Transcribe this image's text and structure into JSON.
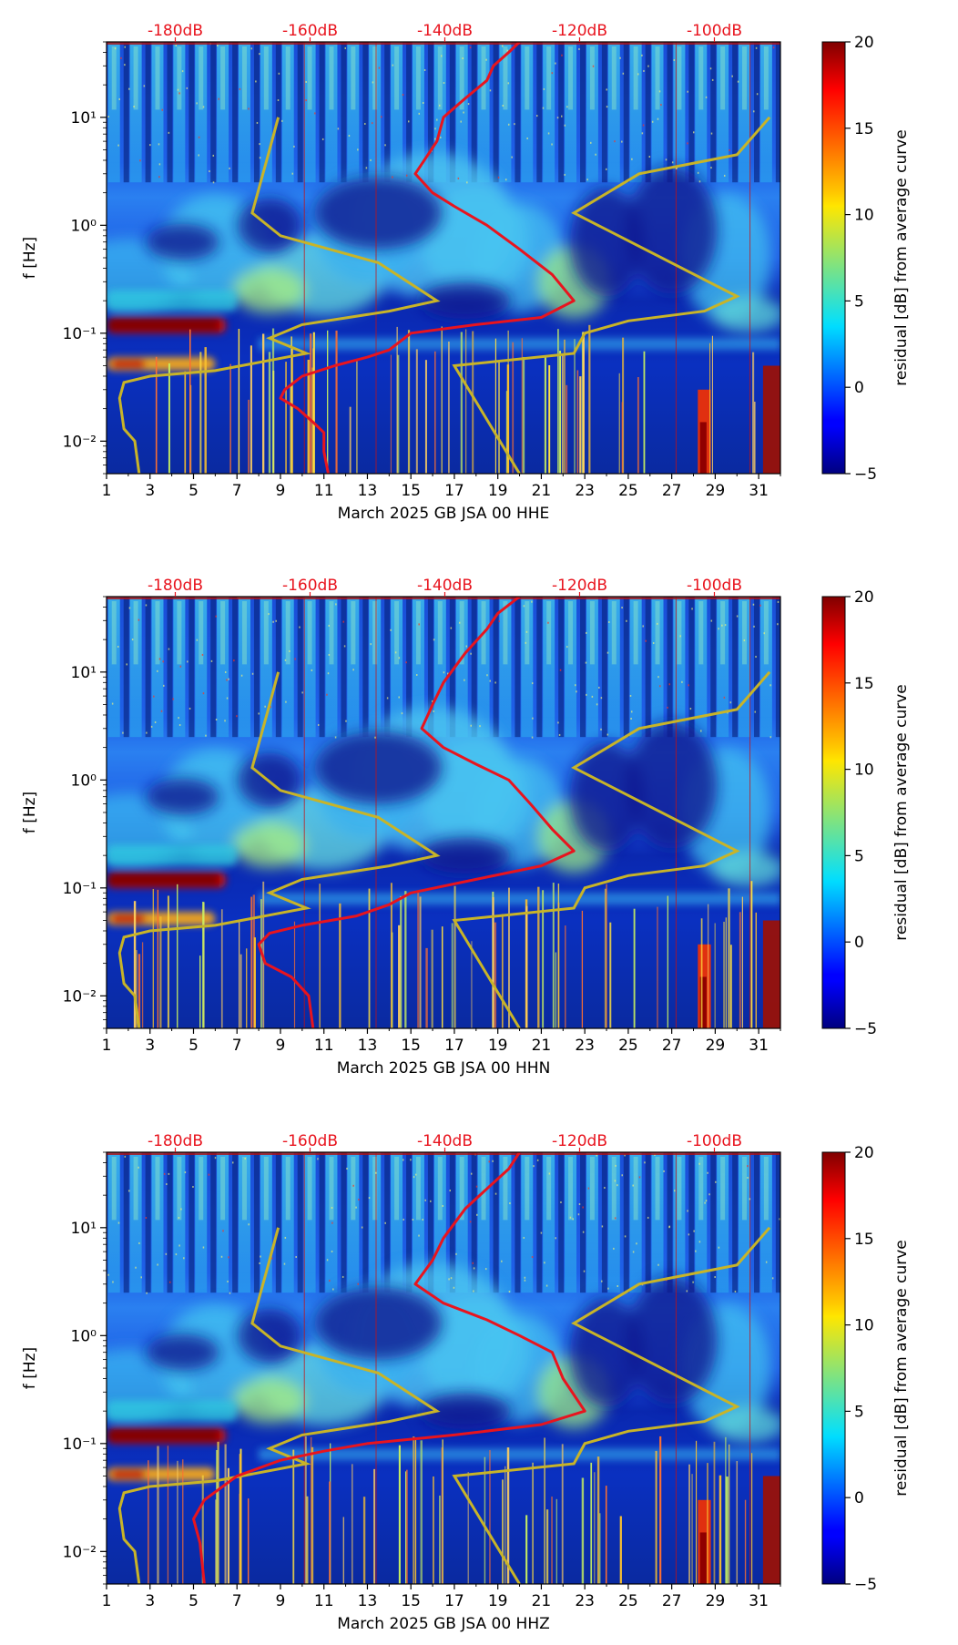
{
  "chart_data": [
    {
      "type": "heatmap",
      "xlabel": "March 2025 GB JSA 00 HHE",
      "ylabel": "f [Hz]",
      "colorbar_label": "residual [dB] from average curve",
      "x_ticks": [
        "1",
        "3",
        "5",
        "7",
        "9",
        "11",
        "13",
        "15",
        "17",
        "19",
        "21",
        "23",
        "25",
        "27",
        "29",
        "31"
      ],
      "x_range": [
        1,
        32
      ],
      "y_scale": "log",
      "y_range": [
        0.005,
        50
      ],
      "y_ticks": [
        {
          "value": 0.01,
          "label": "10⁻²"
        },
        {
          "value": 0.1,
          "label": "10⁻¹"
        },
        {
          "value": 1,
          "label": "10⁰"
        },
        {
          "value": 10,
          "label": "10¹"
        }
      ],
      "top_axis_ticks": [
        "-180dB",
        "-160dB",
        "-140dB",
        "-120dB",
        "-100dB"
      ],
      "colorbar_ticks": [
        "20",
        "15",
        "10",
        "5",
        "0",
        "−5"
      ],
      "color_range": [
        -5,
        20
      ],
      "colormap": "jet",
      "red_curve": {
        "color": "#e8141e",
        "points": [
          [
            20,
            50
          ],
          [
            19.5,
            40
          ],
          [
            18.8,
            30
          ],
          [
            18.5,
            22
          ],
          [
            17.5,
            15
          ],
          [
            16.5,
            10
          ],
          [
            16.2,
            6
          ],
          [
            15.2,
            3
          ],
          [
            16,
            2
          ],
          [
            17,
            1.5
          ],
          [
            18.5,
            1
          ],
          [
            20,
            0.6
          ],
          [
            21.5,
            0.35
          ],
          [
            22.5,
            0.2
          ],
          [
            21,
            0.14
          ],
          [
            18,
            0.12
          ],
          [
            15,
            0.1
          ],
          [
            14,
            0.07
          ],
          [
            13,
            0.06
          ],
          [
            11.5,
            0.05
          ],
          [
            10,
            0.04
          ],
          [
            9.2,
            0.03
          ],
          [
            9,
            0.025
          ],
          [
            9.8,
            0.02
          ],
          [
            10.5,
            0.015
          ],
          [
            11,
            0.012
          ],
          [
            11,
            0.008
          ],
          [
            11.2,
            0.005
          ]
        ]
      },
      "yellow_curve": {
        "color": "#c8b428",
        "points": [
          [
            8.9,
            10
          ],
          [
            8.5,
            5
          ],
          [
            7.7,
            1.3
          ],
          [
            9,
            0.8
          ],
          [
            13.5,
            0.45
          ],
          [
            16.2,
            0.2
          ],
          [
            14,
            0.16
          ],
          [
            10,
            0.12
          ],
          [
            8.5,
            0.09
          ],
          [
            10.2,
            0.065
          ],
          [
            6,
            0.045
          ],
          [
            3,
            0.04
          ],
          [
            1.8,
            0.035
          ],
          [
            1.6,
            0.025
          ],
          [
            1.8,
            0.013
          ],
          [
            2.3,
            0.01
          ],
          [
            2.5,
            0.005
          ]
        ],
        "second_branch": [
          [
            31.5,
            10
          ],
          [
            30,
            4.5
          ],
          [
            25.5,
            3
          ],
          [
            22.5,
            1.3
          ],
          [
            30,
            0.22
          ],
          [
            28.5,
            0.16
          ],
          [
            25,
            0.13
          ],
          [
            23,
            0.1
          ],
          [
            22.5,
            0.065
          ],
          [
            17,
            0.05
          ],
          [
            20,
            0.005
          ]
        ]
      }
    },
    {
      "type": "heatmap",
      "xlabel": "March 2025 GB JSA 00 HHN",
      "ylabel": "f [Hz]",
      "colorbar_label": "residual [dB] from average curve",
      "x_ticks": [
        "1",
        "3",
        "5",
        "7",
        "9",
        "11",
        "13",
        "15",
        "17",
        "19",
        "21",
        "23",
        "25",
        "27",
        "29",
        "31"
      ],
      "x_range": [
        1,
        32
      ],
      "y_scale": "log",
      "y_range": [
        0.005,
        50
      ],
      "y_ticks": [
        {
          "value": 0.01,
          "label": "10⁻²"
        },
        {
          "value": 0.1,
          "label": "10⁻¹"
        },
        {
          "value": 1,
          "label": "10⁰"
        },
        {
          "value": 10,
          "label": "10¹"
        }
      ],
      "top_axis_ticks": [
        "-180dB",
        "-160dB",
        "-140dB",
        "-120dB",
        "-100dB"
      ],
      "colorbar_ticks": [
        "20",
        "15",
        "10",
        "5",
        "0",
        "−5"
      ],
      "color_range": [
        -5,
        20
      ],
      "colormap": "jet",
      "red_curve": {
        "color": "#e8141e",
        "points": [
          [
            20,
            50
          ],
          [
            19,
            35
          ],
          [
            18.5,
            25
          ],
          [
            17.5,
            15
          ],
          [
            16.5,
            8
          ],
          [
            16,
            5
          ],
          [
            15.5,
            3
          ],
          [
            16.5,
            2
          ],
          [
            18,
            1.4
          ],
          [
            19.5,
            1
          ],
          [
            20.5,
            0.6
          ],
          [
            21.5,
            0.35
          ],
          [
            22.5,
            0.22
          ],
          [
            21,
            0.16
          ],
          [
            18,
            0.12
          ],
          [
            15,
            0.09
          ],
          [
            14,
            0.07
          ],
          [
            12.5,
            0.055
          ],
          [
            10,
            0.045
          ],
          [
            8.5,
            0.038
          ],
          [
            8,
            0.03
          ],
          [
            8.3,
            0.02
          ],
          [
            9.5,
            0.015
          ],
          [
            10.3,
            0.01
          ],
          [
            10.5,
            0.005
          ]
        ]
      },
      "yellow_curve": {
        "color": "#c8b428",
        "points": [
          [
            8.9,
            10
          ],
          [
            8.5,
            5
          ],
          [
            7.7,
            1.3
          ],
          [
            9,
            0.8
          ],
          [
            13.5,
            0.45
          ],
          [
            16.2,
            0.2
          ],
          [
            14,
            0.16
          ],
          [
            10,
            0.12
          ],
          [
            8.5,
            0.09
          ],
          [
            10.2,
            0.065
          ],
          [
            6,
            0.045
          ],
          [
            3,
            0.04
          ],
          [
            1.8,
            0.035
          ],
          [
            1.6,
            0.025
          ],
          [
            1.8,
            0.013
          ],
          [
            2.3,
            0.01
          ],
          [
            2.5,
            0.005
          ]
        ],
        "second_branch": [
          [
            31.5,
            10
          ],
          [
            30,
            4.5
          ],
          [
            25.5,
            3
          ],
          [
            22.5,
            1.3
          ],
          [
            30,
            0.22
          ],
          [
            28.5,
            0.16
          ],
          [
            25,
            0.13
          ],
          [
            23,
            0.1
          ],
          [
            22.5,
            0.065
          ],
          [
            17,
            0.05
          ],
          [
            20,
            0.005
          ]
        ]
      }
    },
    {
      "type": "heatmap",
      "xlabel": "March 2025 GB JSA 00 HHZ",
      "ylabel": "f [Hz]",
      "colorbar_label": "residual [dB] from average curve",
      "x_ticks": [
        "1",
        "3",
        "5",
        "7",
        "9",
        "11",
        "13",
        "15",
        "17",
        "19",
        "21",
        "23",
        "25",
        "27",
        "29",
        "31"
      ],
      "x_range": [
        1,
        32
      ],
      "y_scale": "log",
      "y_range": [
        0.005,
        50
      ],
      "y_ticks": [
        {
          "value": 0.01,
          "label": "10⁻²"
        },
        {
          "value": 0.1,
          "label": "10⁻¹"
        },
        {
          "value": 1,
          "label": "10⁰"
        },
        {
          "value": 10,
          "label": "10¹"
        }
      ],
      "top_axis_ticks": [
        "-180dB",
        "-160dB",
        "-140dB",
        "-120dB",
        "-100dB"
      ],
      "colorbar_ticks": [
        "20",
        "15",
        "10",
        "5",
        "0",
        "−5"
      ],
      "color_range": [
        -5,
        20
      ],
      "colormap": "jet",
      "red_curve": {
        "color": "#e8141e",
        "points": [
          [
            20,
            50
          ],
          [
            19.5,
            35
          ],
          [
            18.7,
            25
          ],
          [
            17.5,
            15
          ],
          [
            16.5,
            8
          ],
          [
            16,
            5
          ],
          [
            15.2,
            3
          ],
          [
            16.5,
            2
          ],
          [
            18.5,
            1.4
          ],
          [
            20,
            1
          ],
          [
            21.5,
            0.7
          ],
          [
            22,
            0.4
          ],
          [
            23,
            0.2
          ],
          [
            21,
            0.15
          ],
          [
            17,
            0.12
          ],
          [
            13,
            0.1
          ],
          [
            11,
            0.085
          ],
          [
            9,
            0.07
          ],
          [
            7,
            0.05
          ],
          [
            5.5,
            0.03
          ],
          [
            5,
            0.02
          ],
          [
            5.3,
            0.012
          ],
          [
            5.5,
            0.005
          ]
        ]
      },
      "yellow_curve": {
        "color": "#c8b428",
        "points": [
          [
            8.9,
            10
          ],
          [
            8.5,
            5
          ],
          [
            7.7,
            1.3
          ],
          [
            9,
            0.8
          ],
          [
            13.5,
            0.45
          ],
          [
            16.2,
            0.2
          ],
          [
            14,
            0.16
          ],
          [
            10,
            0.12
          ],
          [
            8.5,
            0.09
          ],
          [
            10.2,
            0.065
          ],
          [
            6,
            0.045
          ],
          [
            3,
            0.04
          ],
          [
            1.8,
            0.035
          ],
          [
            1.6,
            0.025
          ],
          [
            1.8,
            0.013
          ],
          [
            2.3,
            0.01
          ],
          [
            2.5,
            0.005
          ]
        ],
        "second_branch": [
          [
            31.5,
            10
          ],
          [
            30,
            4.5
          ],
          [
            25.5,
            3
          ],
          [
            22.5,
            1.3
          ],
          [
            30,
            0.22
          ],
          [
            28.5,
            0.16
          ],
          [
            25,
            0.13
          ],
          [
            23,
            0.1
          ],
          [
            22.5,
            0.065
          ],
          [
            17,
            0.05
          ],
          [
            20,
            0.005
          ]
        ]
      }
    }
  ]
}
